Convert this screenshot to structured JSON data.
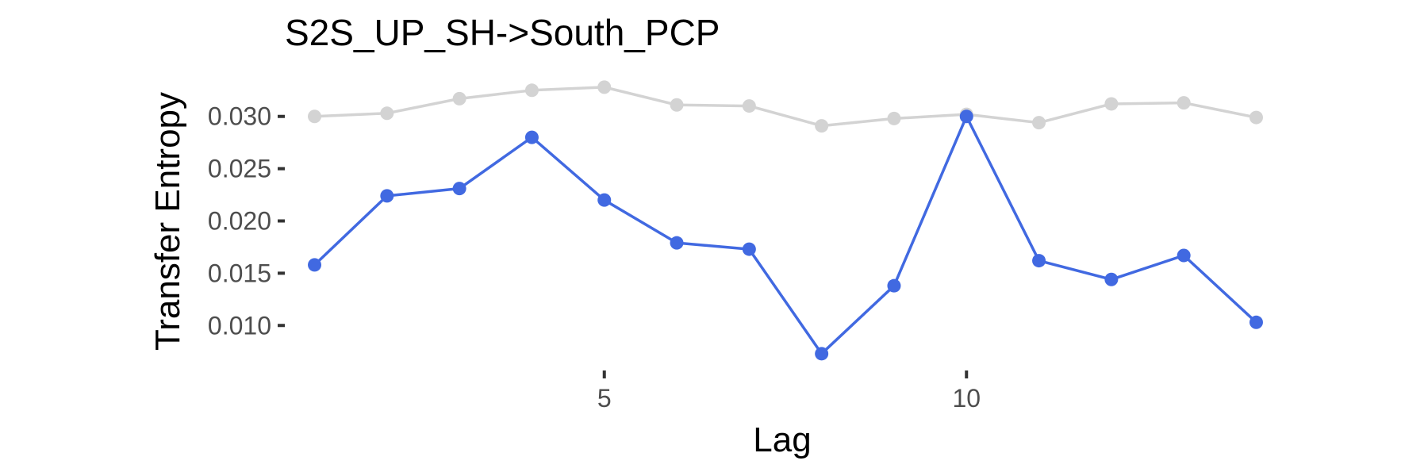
{
  "chart_data": {
    "type": "line",
    "title": "S2S_UP_SH->South_PCP",
    "xlabel": "Lag",
    "ylabel": "Transfer Entropy",
    "xlim": [
      0.6,
      14.4
    ],
    "ylim": [
      0.0063,
      0.0337
    ],
    "x_ticks": [
      5,
      10
    ],
    "x_tick_labels": [
      "5",
      "10"
    ],
    "y_ticks": [
      0.01,
      0.015,
      0.02,
      0.025,
      0.03
    ],
    "y_tick_labels": [
      "0.010",
      "0.015",
      "0.020",
      "0.025",
      "0.030"
    ],
    "grid": false,
    "legend": "none",
    "x": [
      1,
      2,
      3,
      4,
      5,
      6,
      7,
      8,
      9,
      10,
      11,
      12,
      13,
      14
    ],
    "series": [
      {
        "color": "#d3d3d3",
        "values": [
          0.03,
          0.0303,
          0.0317,
          0.0325,
          0.0328,
          0.0311,
          0.031,
          0.0291,
          0.0298,
          0.0302,
          0.0294,
          0.0312,
          0.0313,
          0.0299
        ]
      },
      {
        "color": "#4169e1",
        "values": [
          0.0158,
          0.0224,
          0.0231,
          0.028,
          0.022,
          0.0179,
          0.0173,
          0.0073,
          0.0138,
          0.03,
          0.0162,
          0.0144,
          0.0167,
          0.0103
        ]
      }
    ]
  }
}
